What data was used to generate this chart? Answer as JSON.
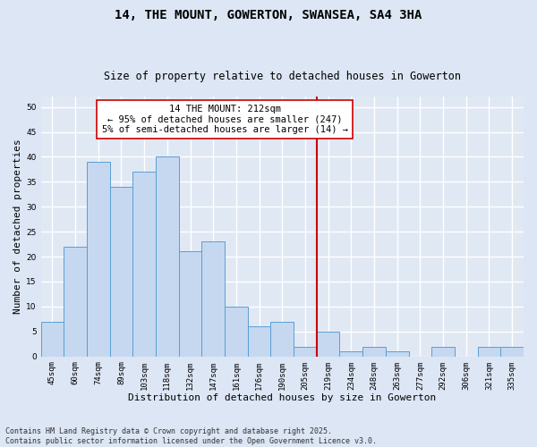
{
  "title": "14, THE MOUNT, GOWERTON, SWANSEA, SA4 3HA",
  "subtitle": "Size of property relative to detached houses in Gowerton",
  "xlabel": "Distribution of detached houses by size in Gowerton",
  "ylabel": "Number of detached properties",
  "categories": [
    "45sqm",
    "60sqm",
    "74sqm",
    "89sqm",
    "103sqm",
    "118sqm",
    "132sqm",
    "147sqm",
    "161sqm",
    "176sqm",
    "190sqm",
    "205sqm",
    "219sqm",
    "234sqm",
    "248sqm",
    "263sqm",
    "277sqm",
    "292sqm",
    "306sqm",
    "321sqm",
    "335sqm"
  ],
  "values": [
    7,
    22,
    39,
    34,
    37,
    40,
    21,
    23,
    10,
    6,
    7,
    2,
    5,
    1,
    2,
    1,
    0,
    2,
    0,
    2,
    2
  ],
  "bar_color": "#c5d8f0",
  "bar_edge_color": "#5a9fd4",
  "background_color": "#e0e8f4",
  "grid_color": "#ffffff",
  "annotation_text": "14 THE MOUNT: 212sqm\n← 95% of detached houses are smaller (247)\n5% of semi-detached houses are larger (14) →",
  "vline_x_index": 11.5,
  "vline_color": "#cc0000",
  "ylim": [
    0,
    52
  ],
  "yticks": [
    0,
    5,
    10,
    15,
    20,
    25,
    30,
    35,
    40,
    45,
    50
  ],
  "footer": "Contains HM Land Registry data © Crown copyright and database right 2025.\nContains public sector information licensed under the Open Government Licence v3.0.",
  "title_fontsize": 10,
  "subtitle_fontsize": 8.5,
  "xlabel_fontsize": 8,
  "ylabel_fontsize": 8,
  "tick_fontsize": 6.5,
  "annotation_fontsize": 7.5,
  "footer_fontsize": 6
}
